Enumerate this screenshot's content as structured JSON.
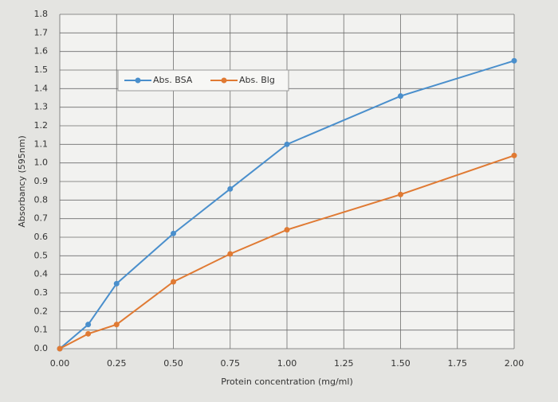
{
  "chart_data": {
    "type": "line",
    "x_label": "Protein concentration (mg/ml)",
    "y_label": "Absorbancy (595nm)",
    "x": [
      0,
      0.125,
      0.25,
      0.5,
      0.75,
      1.0,
      1.5,
      2.0
    ],
    "series": [
      {
        "name": "Abs. BSA",
        "color": "#4a8fcc",
        "values": [
          0,
          0.13,
          0.35,
          0.62,
          0.86,
          1.1,
          1.36,
          1.55
        ]
      },
      {
        "name": "Abs. Blg",
        "color": "#e07a33",
        "values": [
          0,
          0.08,
          0.13,
          0.36,
          0.51,
          0.64,
          0.83,
          1.04
        ]
      }
    ],
    "xlim": [
      0,
      2
    ],
    "xticks": [
      {
        "value": 0,
        "label": "0.00"
      },
      0.25,
      {
        "value": 0.5,
        "label": "0.50"
      },
      0.75,
      {
        "value": 1,
        "label": "1.00"
      },
      1.25,
      {
        "value": 1.5,
        "label": "1.50"
      },
      1.75,
      {
        "value": 2,
        "label": "2.00"
      }
    ],
    "ylim": [
      0,
      1.8
    ],
    "yticks": [
      {
        "value": 0,
        "label": "0.0"
      },
      0.1,
      0.2,
      0.3,
      0.4,
      0.5,
      0.6,
      0.7,
      0.8,
      0.9,
      {
        "value": 1,
        "label": "1.0"
      },
      1.1,
      1.2,
      1.3,
      1.4,
      1.5,
      1.6,
      1.7,
      1.8
    ],
    "grid": true,
    "legend": "upper left"
  }
}
